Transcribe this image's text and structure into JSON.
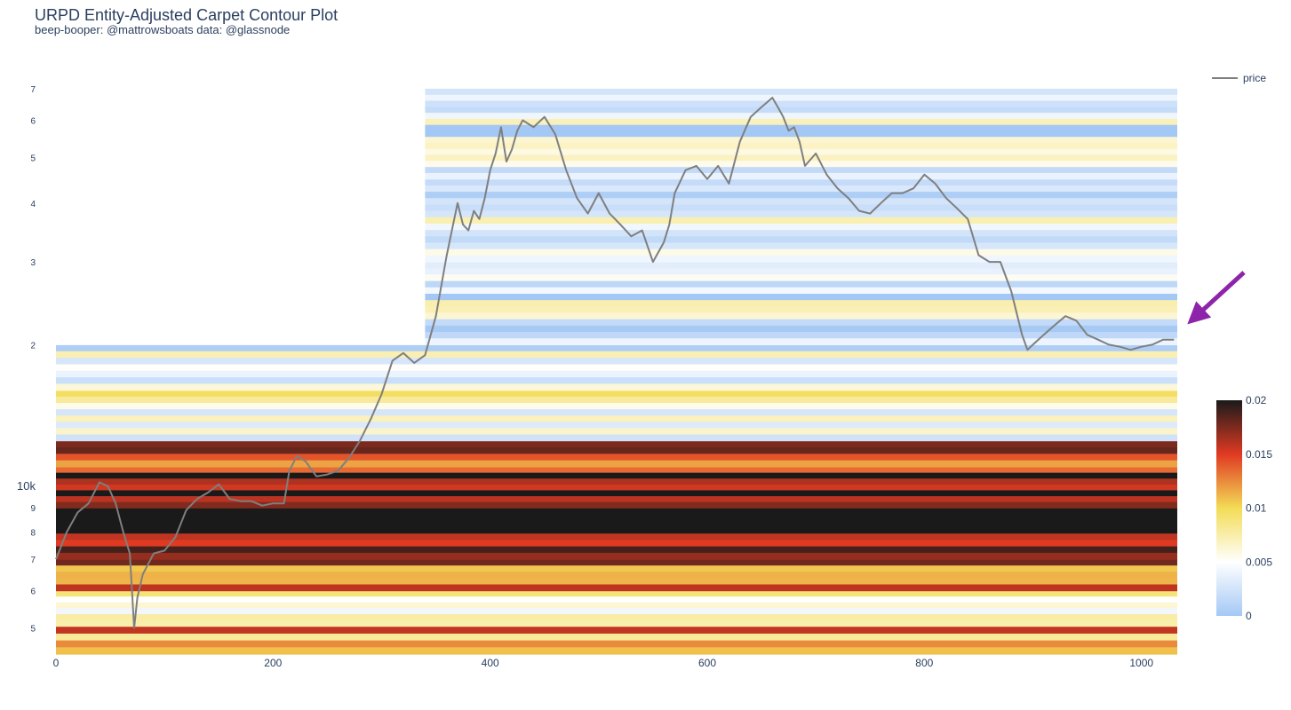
{
  "header": {
    "title": "URPD Entity-Adjusted Carpet Contour Plot",
    "subtitle": "beep-booper: @mattrowsboats data: @glassnode"
  },
  "legend": {
    "label": "price",
    "color": "#7f7f7f"
  },
  "colorbar": {
    "ticks": [
      "0.02",
      "0.015",
      "0.01",
      "0.005",
      "0"
    ],
    "values": [
      0.02,
      0.015,
      0.01,
      0.005,
      0
    ],
    "range": [
      0,
      0.02
    ],
    "colorscale": [
      "#a4c8f5",
      "#ffffff",
      "#f3dc56",
      "#e03a22",
      "#1a1a1a"
    ]
  },
  "annotation": {
    "type": "arrow",
    "color": "#8e24aa",
    "points_to": "latest price"
  },
  "chart_data": {
    "type": "heatmap",
    "title": "URPD Entity-Adjusted Carpet Contour Plot",
    "subtitle": "beep-booper: @mattrowsboats data: @glassnode",
    "xlabel": "",
    "ylabel": "",
    "x_ticks": [
      "0",
      "200",
      "400",
      "600",
      "800",
      "1000"
    ],
    "x_tick_values": [
      0,
      200,
      400,
      600,
      800,
      1000
    ],
    "xlim": [
      0,
      1033
    ],
    "y_scale": "log",
    "ylim": [
      4400,
      70000
    ],
    "y_ticks": [
      "10k",
      "9",
      "8",
      "7",
      "6",
      "5",
      "7",
      "6",
      "5",
      "4",
      "3",
      "2"
    ],
    "y_tick_values": [
      10000,
      9000,
      8000,
      7000,
      6000,
      5000,
      70000,
      60000,
      50000,
      40000,
      30000,
      20000
    ],
    "legend_position": "top-right",
    "series": [
      {
        "name": "price",
        "color": "#7f7f7f",
        "x": [
          0,
          10,
          20,
          30,
          40,
          48,
          55,
          62,
          68,
          72,
          75,
          80,
          90,
          100,
          110,
          120,
          130,
          140,
          150,
          160,
          170,
          180,
          190,
          200,
          210,
          215,
          222,
          230,
          240,
          250,
          260,
          270,
          280,
          290,
          300,
          310,
          320,
          330,
          340,
          350,
          360,
          370,
          375,
          380,
          385,
          390,
          395,
          400,
          405,
          410,
          415,
          420,
          425,
          430,
          440,
          450,
          460,
          470,
          480,
          490,
          500,
          510,
          520,
          530,
          540,
          550,
          560,
          565,
          570,
          580,
          590,
          600,
          610,
          620,
          630,
          640,
          650,
          660,
          665,
          670,
          675,
          680,
          685,
          690,
          700,
          710,
          720,
          730,
          740,
          750,
          760,
          770,
          780,
          790,
          800,
          810,
          820,
          830,
          840,
          850,
          860,
          870,
          880,
          890,
          895,
          900,
          910,
          920,
          930,
          940,
          950,
          960,
          970,
          980,
          990,
          1000,
          1010,
          1020,
          1030
        ],
        "y": [
          7000,
          8000,
          8800,
          9200,
          10200,
          10000,
          9200,
          8000,
          7200,
          5000,
          5800,
          6500,
          7200,
          7300,
          7800,
          8900,
          9400,
          9700,
          10100,
          9400,
          9300,
          9300,
          9100,
          9200,
          9200,
          10800,
          11600,
          11300,
          10500,
          10600,
          10800,
          11500,
          12500,
          13900,
          15700,
          18500,
          19200,
          18300,
          19000,
          23000,
          31000,
          40000,
          36000,
          35000,
          38500,
          37000,
          41000,
          47000,
          51000,
          58000,
          49000,
          52000,
          57000,
          60000,
          58000,
          61000,
          56000,
          47000,
          41000,
          38000,
          42000,
          38000,
          36000,
          34000,
          35000,
          30000,
          33000,
          36000,
          42000,
          47000,
          48000,
          45000,
          48000,
          44000,
          54000,
          61000,
          64000,
          67000,
          64000,
          61000,
          57000,
          58000,
          54000,
          48000,
          51000,
          46000,
          43000,
          41000,
          38500,
          38000,
          40000,
          42000,
          42000,
          43000,
          46000,
          44000,
          41000,
          39000,
          37000,
          31000,
          30000,
          30000,
          26000,
          21000,
          19500,
          20000,
          21000,
          22000,
          23000,
          22500,
          21000,
          20500,
          20000,
          19800,
          19500,
          19800,
          20000,
          20500,
          20500
        ]
      }
    ],
    "heatmap_bands": [
      {
        "from": 4400,
        "to": 5200,
        "intensity": 0.6
      },
      {
        "from": 5200,
        "to": 6000,
        "intensity": 0.35
      },
      {
        "from": 6000,
        "to": 7000,
        "intensity": 0.75
      },
      {
        "from": 7000,
        "to": 9000,
        "intensity": 0.95
      },
      {
        "from": 9000,
        "to": 11000,
        "intensity": 0.9
      },
      {
        "from": 11000,
        "to": 12500,
        "intensity": 0.7
      },
      {
        "from": 12500,
        "to": 16000,
        "intensity": 0.3
      },
      {
        "from": 16000,
        "to": 20000,
        "intensity": 0.2
      },
      {
        "from": 20000,
        "to": 30000,
        "intensity": 0.15
      },
      {
        "from": 30000,
        "to": 45000,
        "intensity": 0.2
      },
      {
        "from": 45000,
        "to": 70000,
        "intensity": 0.15
      }
    ]
  }
}
